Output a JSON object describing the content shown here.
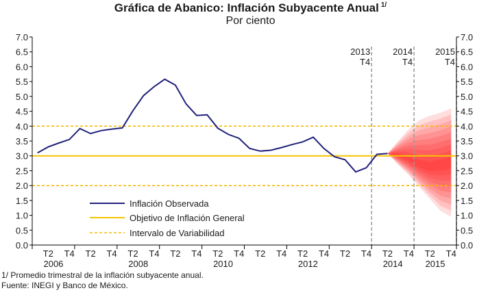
{
  "title": "Gráfica de Abanico: Inflación Subyacente Anual",
  "title_note": "1/",
  "subtitle": "Por ciento",
  "footnote": "1/ Promedio trimestral de la inflación subyacente anual.",
  "source": "Fuente: INEGI y Banco de México.",
  "colors": {
    "observed": "#1f1f7a",
    "target": "#f5c400",
    "interval": "#f5b800",
    "fan": "#ff0000",
    "vline": "#999999"
  },
  "chart_data": {
    "type": "line",
    "ylim": [
      0,
      7.0
    ],
    "yticks": [
      "0.0",
      "0.5",
      "1.0",
      "1.5",
      "2.0",
      "2.5",
      "3.0",
      "3.5",
      "4.0",
      "4.5",
      "5.0",
      "5.5",
      "6.0",
      "6.5",
      "7.0"
    ],
    "x_quarter_labels": [
      "T2",
      "T4",
      "T2",
      "T4",
      "T2",
      "T4",
      "T2",
      "T4",
      "T2",
      "T4",
      "T2",
      "T4",
      "T2",
      "T4",
      "T2",
      "T4",
      "T2",
      "T4",
      "T2",
      "T4"
    ],
    "x_year_labels": [
      "2006",
      "2008",
      "2010",
      "2012",
      "2014",
      "2015"
    ],
    "x_start": "2006 Q1",
    "series": [
      {
        "name": "Inflación Observada",
        "style": "solid",
        "values": [
          3.1,
          3.3,
          3.43,
          3.55,
          3.92,
          3.75,
          3.85,
          3.9,
          3.94,
          4.52,
          5.03,
          5.33,
          5.58,
          5.38,
          4.75,
          4.36,
          4.38,
          3.93,
          3.72,
          3.59,
          3.25,
          3.16,
          3.19,
          3.28,
          3.38,
          3.47,
          3.63,
          3.25,
          2.97,
          2.87,
          2.46,
          2.6,
          3.05,
          3.08
        ]
      },
      {
        "name": "Objetivo de Inflación General",
        "style": "solid",
        "constant": 3.0
      },
      {
        "name": "Intervalo de Variabilidad",
        "style": "dashed",
        "constants": [
          2.0,
          4.0
        ]
      }
    ],
    "fan": {
      "quarters": [
        "2014 Q2",
        "2014 Q3",
        "2014 Q4",
        "2015 Q1",
        "2015 Q2",
        "2015 Q3",
        "2015 Q4"
      ],
      "median": [
        3.08,
        3.02,
        2.88,
        2.7,
        2.6,
        2.68,
        2.78
      ],
      "outer_low": [
        3.08,
        2.7,
        2.35,
        1.95,
        1.55,
        1.15,
        0.95
      ],
      "outer_high": [
        3.08,
        3.5,
        3.9,
        4.2,
        4.35,
        4.45,
        4.6
      ]
    },
    "vlines": [
      {
        "label_year": "2013",
        "label_q": "T4",
        "at": "2013 Q4"
      },
      {
        "label_year": "2014",
        "label_q": "T4",
        "at": "2014 Q4"
      },
      {
        "label_year": "2015",
        "label_q": "T4",
        "at": "2015 Q4"
      }
    ],
    "grid": false,
    "legend_position": "bottom-left"
  }
}
